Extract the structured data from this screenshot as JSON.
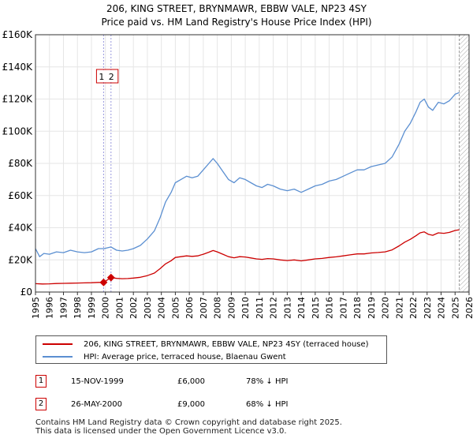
{
  "title_line1": "206, KING STREET, BRYNMAWR, EBBW VALE, NP23 4SY",
  "title_line2": "Price paid vs. HM Land Registry's House Price Index (HPI)",
  "colors": {
    "price_line": "#cc0000",
    "hpi_line": "#5b8fd1",
    "marker_fill": "#cc0000",
    "marker_box": "#cc0000",
    "vline": "#9999dd",
    "grid": "#e6e6e6",
    "future_hatch": "#999999"
  },
  "legend": {
    "price_label": "206, KING STREET, BRYNMAWR, EBBW VALE, NP23 4SY (terraced house)",
    "hpi_label": "HPI: Average price, terraced house, Blaenau Gwent"
  },
  "transactions": [
    {
      "num": "1",
      "date": "15-NOV-1999",
      "price": "£6,000",
      "hpi": "78% ↓ HPI"
    },
    {
      "num": "2",
      "date": "26-MAY-2000",
      "price": "£9,000",
      "hpi": "68% ↓ HPI"
    }
  ],
  "footer": {
    "line1": "Contains HM Land Registry data © Crown copyright and database right 2025.",
    "line2": "This data is licensed under the Open Government Licence v3.0."
  },
  "chart_data": {
    "type": "line",
    "title": "206, KING STREET, BRYNMAWR, EBBW VALE, NP23 4SY",
    "subtitle": "Price paid vs. HM Land Registry's House Price Index (HPI)",
    "xlabel": "",
    "ylabel": "",
    "xlim": [
      1995,
      2026
    ],
    "ylim": [
      0,
      160000
    ],
    "grid": true,
    "y_ticks": [
      0,
      20000,
      40000,
      60000,
      80000,
      100000,
      120000,
      140000,
      160000
    ],
    "y_tick_labels": [
      "£0",
      "£20K",
      "£40K",
      "£60K",
      "£80K",
      "£100K",
      "£120K",
      "£140K",
      "£160K"
    ],
    "x_ticks": [
      "1995",
      "1996",
      "1997",
      "1998",
      "1999",
      "2000",
      "2001",
      "2002",
      "2003",
      "2004",
      "2005",
      "2006",
      "2007",
      "2008",
      "2009",
      "2010",
      "2011",
      "2012",
      "2013",
      "2014",
      "2015",
      "2016",
      "2017",
      "2018",
      "2019",
      "2020",
      "2021",
      "2022",
      "2023",
      "2024",
      "2025",
      "2026"
    ],
    "future_start": 2025.3,
    "series": [
      {
        "name": "HPI: Average price, terraced house, Blaenau Gwent",
        "x": [
          1995.0,
          1995.3,
          1995.6,
          1996.0,
          1996.5,
          1997.0,
          1997.5,
          1998.0,
          1998.5,
          1999.0,
          1999.5,
          1999.9,
          2000.4,
          2000.8,
          2001.2,
          2001.6,
          2002.0,
          2002.5,
          2003.0,
          2003.5,
          2003.9,
          2004.3,
          2004.7,
          2005.0,
          2005.4,
          2005.8,
          2006.2,
          2006.6,
          2007.0,
          2007.4,
          2007.7,
          2008.0,
          2008.4,
          2008.8,
          2009.2,
          2009.6,
          2010.0,
          2010.4,
          2010.8,
          2011.2,
          2011.6,
          2012.0,
          2012.5,
          2013.0,
          2013.5,
          2014.0,
          2014.5,
          2015.0,
          2015.5,
          2016.0,
          2016.5,
          2017.0,
          2017.5,
          2018.0,
          2018.5,
          2019.0,
          2019.5,
          2020.0,
          2020.5,
          2021.0,
          2021.4,
          2021.8,
          2022.2,
          2022.5,
          2022.8,
          2023.1,
          2023.4,
          2023.8,
          2024.2,
          2024.6,
          2025.0,
          2025.3
        ],
        "values": [
          27000,
          22000,
          24000,
          23500,
          25000,
          24500,
          26000,
          25000,
          24500,
          25000,
          27000,
          27000,
          28000,
          26000,
          25500,
          26000,
          27000,
          29000,
          33000,
          38000,
          46000,
          56000,
          62000,
          68000,
          70000,
          72000,
          71000,
          72000,
          76000,
          80000,
          83000,
          80000,
          75000,
          70000,
          68000,
          71000,
          70000,
          68000,
          66000,
          65000,
          67000,
          66000,
          64000,
          63000,
          64000,
          62000,
          64000,
          66000,
          67000,
          69000,
          70000,
          72000,
          74000,
          76000,
          76000,
          78000,
          79000,
          80000,
          84000,
          92000,
          100000,
          105000,
          112000,
          118000,
          120000,
          115000,
          113000,
          118000,
          117000,
          119000,
          123000,
          124000
        ]
      },
      {
        "name": "206, KING STREET, BRYNMAWR, EBBW VALE, NP23 4SY (terraced house)",
        "x": [
          1995.0,
          1995.5,
          1996.0,
          1996.5,
          1997.0,
          1997.5,
          1998.0,
          1998.5,
          1999.0,
          1999.5,
          1999.87,
          2000.4,
          2000.8,
          2001.2,
          2001.6,
          2002.0,
          2002.5,
          2003.0,
          2003.5,
          2003.9,
          2004.3,
          2004.7,
          2005.0,
          2005.4,
          2005.8,
          2006.2,
          2006.6,
          2007.0,
          2007.4,
          2007.7,
          2008.0,
          2008.4,
          2008.8,
          2009.2,
          2009.6,
          2010.0,
          2010.4,
          2010.8,
          2011.2,
          2011.6,
          2012.0,
          2012.5,
          2013.0,
          2013.5,
          2014.0,
          2014.5,
          2015.0,
          2015.5,
          2016.0,
          2016.5,
          2017.0,
          2017.5,
          2018.0,
          2018.5,
          2019.0,
          2019.5,
          2020.0,
          2020.5,
          2021.0,
          2021.4,
          2021.8,
          2022.2,
          2022.5,
          2022.8,
          2023.1,
          2023.4,
          2023.8,
          2024.2,
          2024.6,
          2025.0,
          2025.3
        ],
        "values": [
          5200,
          5000,
          5100,
          5300,
          5400,
          5500,
          5600,
          5700,
          5800,
          6000,
          6000,
          9000,
          8500,
          8300,
          8400,
          8700,
          9200,
          10200,
          11800,
          14500,
          17500,
          19500,
          21500,
          22000,
          22500,
          22200,
          22500,
          23500,
          24800,
          25800,
          25000,
          23500,
          22000,
          21300,
          22000,
          21800,
          21200,
          20600,
          20300,
          20800,
          20600,
          20000,
          19600,
          20000,
          19400,
          20000,
          20600,
          20900,
          21500,
          21900,
          22500,
          23100,
          23700,
          23700,
          24300,
          24600,
          25000,
          26200,
          28700,
          31000,
          32800,
          35000,
          36800,
          37400,
          35900,
          35300,
          36800,
          36500,
          37100,
          38300,
          38700
        ]
      }
    ],
    "annotations": [
      {
        "label": "1",
        "x": 1999.87,
        "y": 6000
      },
      {
        "label": "2",
        "x": 2000.4,
        "y": 9000
      }
    ]
  }
}
